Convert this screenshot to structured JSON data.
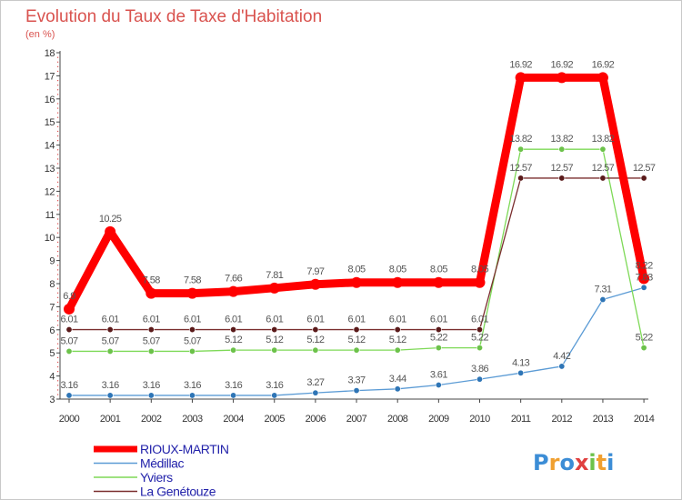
{
  "chart_data": {
    "type": "line",
    "title": "Evolution du Taux de Taxe d'Habitation",
    "subtitle": "(en %)",
    "xlabel": "",
    "ylabel": "",
    "x": [
      "2000",
      "2001",
      "2002",
      "2003",
      "2004",
      "2005",
      "2006",
      "2007",
      "2008",
      "2009",
      "2010",
      "2011",
      "2012",
      "2013",
      "2014"
    ],
    "ylim": [
      3,
      18
    ],
    "yticks": [
      "3",
      "4",
      "5",
      "6",
      "7",
      "8",
      "9",
      "10",
      "11",
      "12",
      "13",
      "14",
      "15",
      "16",
      "17",
      "18"
    ],
    "grid": false,
    "legend_position": "bottom-left",
    "series": [
      {
        "name": "RIOUX-MARTIN",
        "color": "#ff0000",
        "point_color": "#ff0000",
        "values": [
          6.9,
          10.25,
          7.58,
          7.58,
          7.66,
          7.81,
          7.97,
          8.05,
          8.05,
          8.05,
          8.05,
          16.92,
          16.92,
          16.92,
          8.22
        ],
        "labels": [
          "6.9",
          "10.25",
          "7.58",
          "7.58",
          "7.66",
          "7.81",
          "7.97",
          "8.05",
          "8.05",
          "8.05",
          "8.05",
          "16.92",
          "16.92",
          "16.92",
          "8.22"
        ]
      },
      {
        "name": "Médillac",
        "color": "#5b9bd5",
        "point_color": "#2e75b6",
        "values": [
          3.16,
          3.16,
          3.16,
          3.16,
          3.16,
          3.16,
          3.27,
          3.37,
          3.44,
          3.61,
          3.86,
          4.13,
          4.42,
          7.31,
          7.83
        ],
        "labels": [
          "3.16",
          "3.16",
          "3.16",
          "3.16",
          "3.16",
          "3.16",
          "3.27",
          "3.37",
          "3.44",
          "3.61",
          "3.86",
          "4.13",
          "4.42",
          "7.31",
          "7.83"
        ]
      },
      {
        "name": "Yviers",
        "color": "#7ed957",
        "point_color": "#6cc24a",
        "values": [
          5.07,
          5.07,
          5.07,
          5.07,
          5.12,
          5.12,
          5.12,
          5.12,
          5.12,
          5.22,
          5.22,
          13.82,
          13.82,
          13.82,
          5.22
        ],
        "labels": [
          "5.07",
          "5.07",
          "5.07",
          "5.07",
          "5.12",
          "5.12",
          "5.12",
          "5.12",
          "5.12",
          "5.22",
          "5.22",
          "13.82",
          "13.82",
          "13.82",
          "5.22"
        ]
      },
      {
        "name": "La Genétouze",
        "color": "#7a2e2e",
        "point_color": "#5a1a1a",
        "values": [
          6.01,
          6.01,
          6.01,
          6.01,
          6.01,
          6.01,
          6.01,
          6.01,
          6.01,
          6.01,
          6.01,
          12.57,
          12.57,
          12.57,
          12.57
        ],
        "labels": [
          "6.01",
          "6.01",
          "6.01",
          "6.01",
          "6.01",
          "6.01",
          "6.01",
          "6.01",
          "6.01",
          "6.01",
          "6.01",
          "12.57",
          "12.57",
          "12.57",
          "12.57"
        ]
      }
    ]
  },
  "logo": {
    "letters": [
      "P",
      "r",
      "o",
      "x",
      "i",
      "t",
      "i"
    ],
    "colors": [
      "#3c8dd6",
      "#f0a030",
      "#3c8dd6",
      "#e04040",
      "#6cc24a",
      "#f0a030",
      "#3c8dd6"
    ]
  }
}
